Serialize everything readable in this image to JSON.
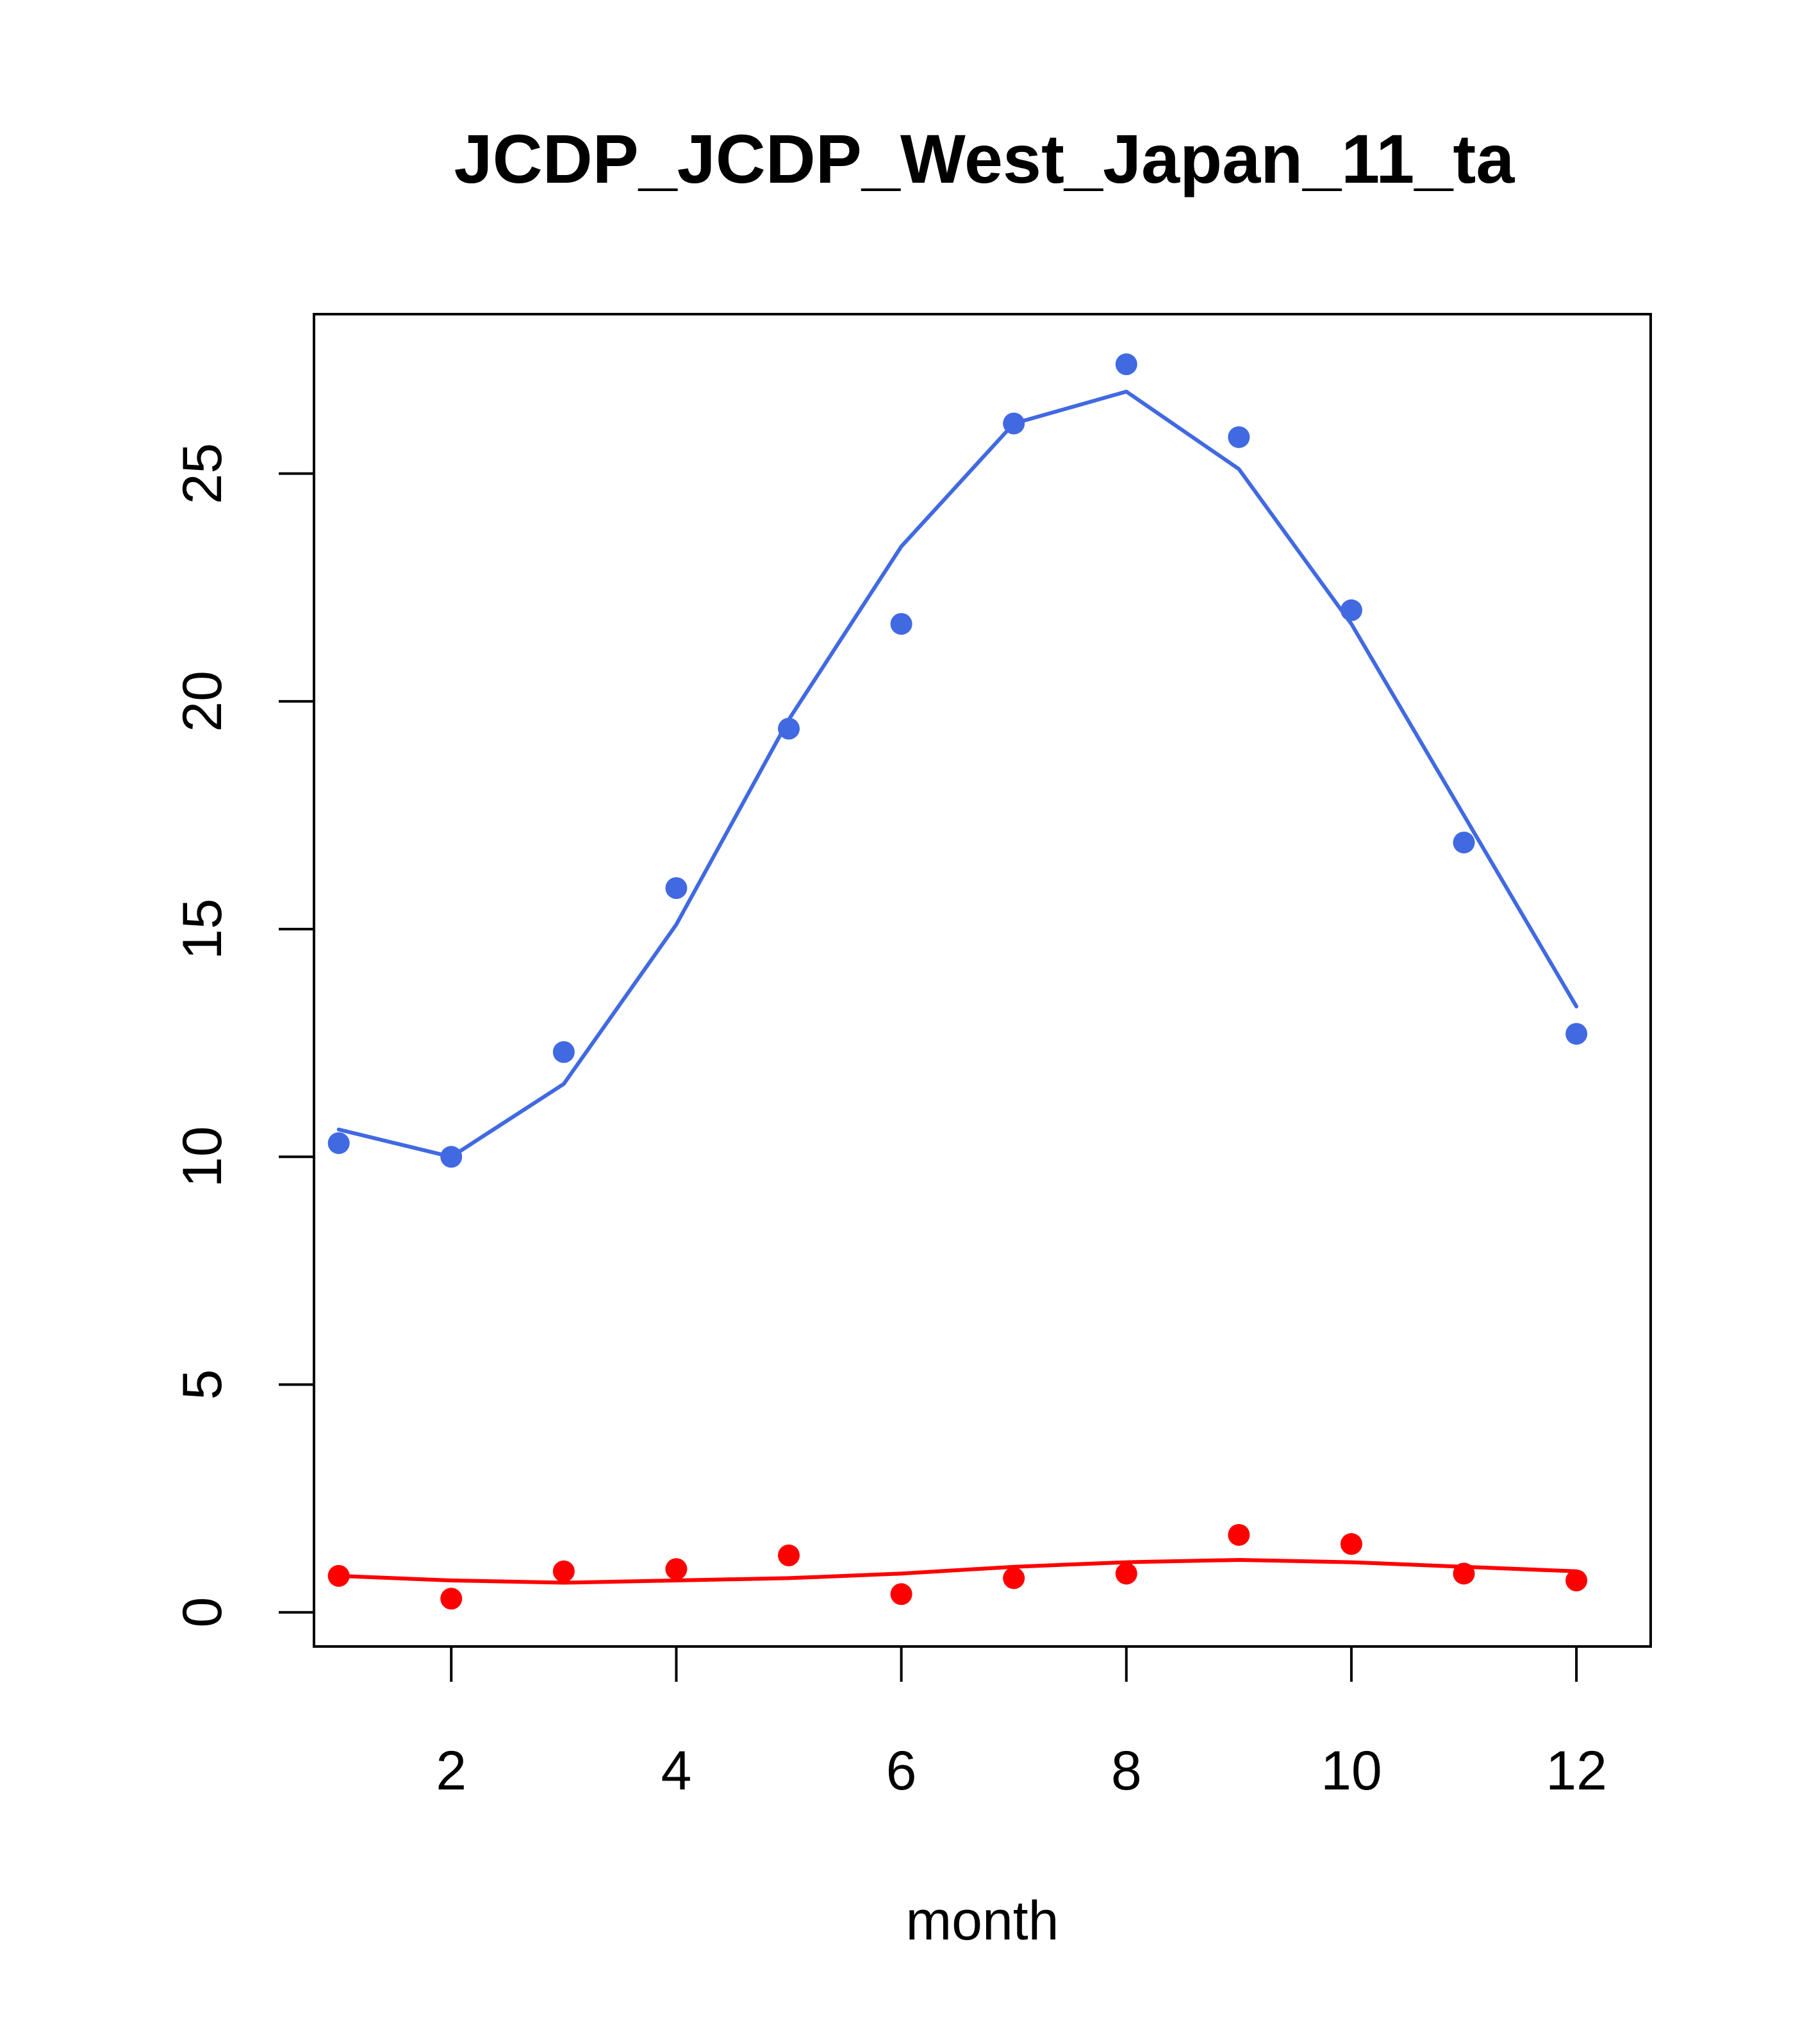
{
  "chart_data": {
    "type": "scatter",
    "title": "JCDP_JCDP_West_Japan_11_ta",
    "xlabel": "month",
    "ylabel": "",
    "xlim": [
      0.78,
      12.66
    ],
    "ylim": [
      -0.75,
      28.5
    ],
    "x_ticks": [
      2,
      4,
      6,
      8,
      10,
      12
    ],
    "y_ticks": [
      0,
      5,
      10,
      15,
      20,
      25
    ],
    "grid": false,
    "legend": "none",
    "x": [
      1,
      2,
      3,
      4,
      5,
      6,
      7,
      8,
      9,
      10,
      11,
      12
    ],
    "series": [
      {
        "color": "#4169E1",
        "points": [
          10.3,
          10.0,
          12.3,
          15.9,
          19.4,
          21.7,
          26.1,
          27.4,
          25.8,
          22.0,
          16.9,
          12.7
        ],
        "fit": [
          10.6,
          10.0,
          11.6,
          15.1,
          19.6,
          23.4,
          26.1,
          26.8,
          25.1,
          21.7,
          17.5,
          13.3
        ]
      },
      {
        "color": "#FF0000",
        "points": [
          0.8,
          0.3,
          0.9,
          0.95,
          1.25,
          0.4,
          0.75,
          0.85,
          1.7,
          1.5,
          0.85,
          0.7
        ],
        "fit": [
          0.8,
          0.7,
          0.65,
          0.7,
          0.75,
          0.85,
          1.0,
          1.1,
          1.15,
          1.1,
          1.0,
          0.9
        ]
      }
    ]
  }
}
